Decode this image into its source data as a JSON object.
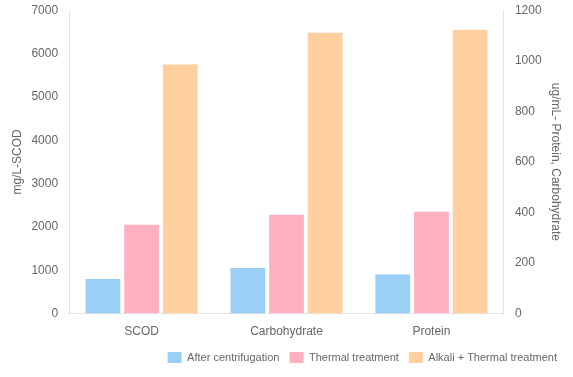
{
  "chart_data": {
    "type": "bar",
    "categories": [
      "SCOD",
      "Carbohydrate",
      "Protein"
    ],
    "series": [
      {
        "name": "After centrifugation",
        "values": [
          800,
          1050,
          900
        ]
      },
      {
        "name": "Thermal treatment",
        "values": [
          2050,
          2280,
          2350
        ]
      },
      {
        "name": "Alkali + Thermal treatment",
        "values": [
          5750,
          6480,
          6550
        ]
      }
    ],
    "ylabel": "mg/L-SCOD",
    "y2label": "ug/mL- Protein, Carbohydrate",
    "ylim": [
      0,
      7000
    ],
    "yticks": [
      0,
      1000,
      2000,
      3000,
      4000,
      5000,
      6000,
      7000
    ],
    "y2lim": [
      0,
      1200
    ],
    "y2ticks": [
      0,
      200,
      400,
      600,
      800,
      1000,
      1200
    ],
    "grid": false,
    "legend": "lower right"
  }
}
